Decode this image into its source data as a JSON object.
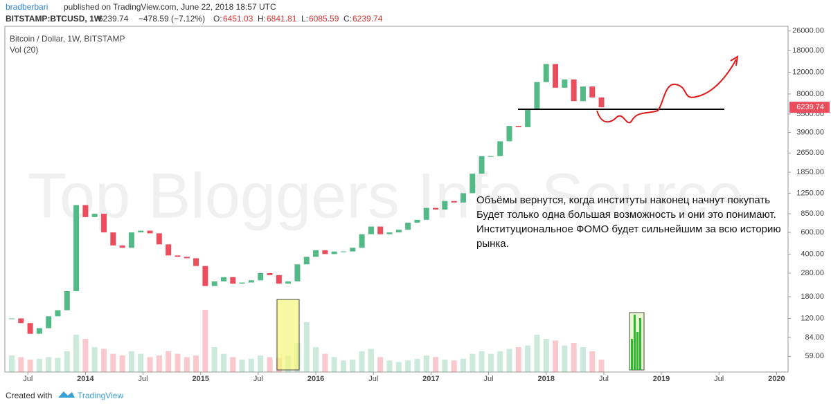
{
  "header": {
    "author": "bradberbari",
    "published": "published on TradingView.com, June 22, 2018 18:57 UTC",
    "symbol": "BITSTAMP:BTCUSD, 1W",
    "last": "6239.74",
    "change": "−478.59 (−7.12%)",
    "o_label": "O:",
    "o": "6451.03",
    "h_label": "H:",
    "h": "6841.81",
    "l_label": "L:",
    "l": "6085.59",
    "c_label": "C:",
    "c": "6239.74"
  },
  "chart_data": {
    "type": "candlestick",
    "title": "Bitcoin / Dollar, 1W, BITSTAMP",
    "volume_title": "Vol (20)",
    "watermark": "Top Bloggers Info Source",
    "up_color": "#53b987",
    "down_color": "#eb4d5c",
    "log_scale": true,
    "x": [
      2013.36,
      2013.44,
      2013.52,
      2013.6,
      2013.68,
      2013.76,
      2013.84,
      2013.92,
      2014.0,
      2014.08,
      2014.16,
      2014.24,
      2014.32,
      2014.4,
      2014.48,
      2014.56,
      2014.64,
      2014.72,
      2014.8,
      2014.88,
      2014.96,
      2015.04,
      2015.12,
      2015.2,
      2015.28,
      2015.36,
      2015.44,
      2015.52,
      2015.6,
      2015.68,
      2015.76,
      2015.84,
      2015.92,
      2016.0,
      2016.08,
      2016.16,
      2016.24,
      2016.32,
      2016.4,
      2016.48,
      2016.56,
      2016.64,
      2016.72,
      2016.8,
      2016.88,
      2016.96,
      2017.04,
      2017.12,
      2017.2,
      2017.28,
      2017.36,
      2017.44,
      2017.52,
      2017.6,
      2017.68,
      2017.76,
      2017.84,
      2017.92,
      2018.0,
      2018.08,
      2018.16,
      2018.24,
      2018.32,
      2018.4,
      2018.48
    ],
    "values": [
      120,
      110,
      90,
      100,
      125,
      140,
      200,
      1000,
      800,
      850,
      600,
      470,
      450,
      600,
      620,
      590,
      480,
      390,
      380,
      370,
      320,
      220,
      240,
      260,
      230,
      235,
      245,
      280,
      270,
      230,
      240,
      330,
      380,
      430,
      400,
      420,
      420,
      450,
      580,
      670,
      580,
      600,
      630,
      720,
      760,
      950,
      920,
      1080,
      1050,
      1250,
      1800,
      2500,
      2500,
      3300,
      4400,
      4300,
      6000,
      10000,
      14000,
      9000,
      10500,
      7000,
      9200,
      7500,
      6239.74
    ],
    "volume": {
      "ylim": [
        0,
        100
      ],
      "values": [
        20,
        18,
        15,
        16,
        18,
        17,
        25,
        45,
        40,
        30,
        28,
        22,
        20,
        25,
        22,
        18,
        20,
        25,
        22,
        18,
        20,
        75,
        30,
        22,
        18,
        15,
        16,
        20,
        18,
        17,
        20,
        35,
        60,
        30,
        22,
        18,
        14,
        15,
        25,
        28,
        18,
        14,
        12,
        14,
        16,
        20,
        18,
        15,
        14,
        16,
        22,
        25,
        22,
        25,
        28,
        30,
        32,
        45,
        40,
        38,
        32,
        35,
        30,
        25,
        15
      ]
    },
    "xlim": [
      2013.3,
      2020.1
    ],
    "ylim": [
      44,
      28400
    ],
    "xticks": [
      {
        "value": 2013.5,
        "label": "Jul"
      },
      2014,
      {
        "value": 2014.5,
        "label": "Jul"
      },
      2015,
      {
        "value": 2015.5,
        "label": "Jul"
      },
      2016,
      {
        "value": 2016.5,
        "label": "Jul"
      },
      2017,
      {
        "value": 2017.5,
        "label": "Jul"
      },
      2018,
      {
        "value": 2018.5,
        "label": "Jul"
      },
      2019,
      {
        "value": 2019.5,
        "label": "Jul"
      },
      2020
    ],
    "yticks": [
      {
        "value": 59,
        "label": "59.00"
      },
      {
        "value": 84,
        "label": "84.00"
      },
      {
        "value": 120,
        "label": "120.00"
      },
      {
        "value": 180,
        "label": "180.00"
      },
      {
        "value": 280,
        "label": "280.00"
      },
      {
        "value": 400,
        "label": "400.00"
      },
      {
        "value": 600,
        "label": "600.00"
      },
      {
        "value": 850,
        "label": "850.00"
      },
      {
        "value": 1250,
        "label": "1250.00"
      },
      {
        "value": 1850,
        "label": "1850.00"
      },
      {
        "value": 2650,
        "label": "2650.00"
      },
      {
        "value": 3900,
        "label": "3900.00"
      },
      {
        "value": 5500,
        "label": "5500.00"
      },
      {
        "value": 8000,
        "label": "8000.00"
      },
      {
        "value": 12000,
        "label": "12000.00"
      },
      {
        "value": 18000,
        "label": "18000.00"
      },
      {
        "value": 26000,
        "label": "26000.00"
      }
    ]
  },
  "annotation": {
    "lines": [
      "Объёмы вернутся, когда институты наконец начнут покупать",
      "Будет только одна большая возможность и они это понимают.",
      "Институциональное ФОМО будет сильнейшим за всю историю",
      "рынка."
    ]
  },
  "footer": {
    "created": "Created with",
    "brand": "TradingView"
  }
}
